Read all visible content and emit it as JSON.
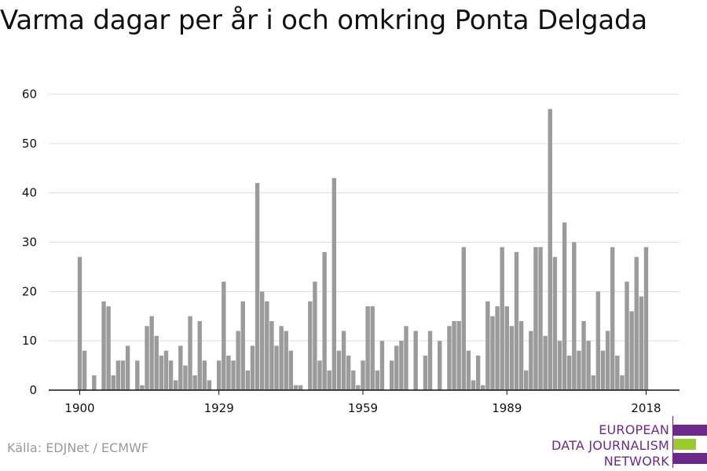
{
  "title": "Varma dagar per år i och omkring Ponta Delgada",
  "source": "Källa: EDJNet / ECMWF",
  "logo": {
    "line1": "EUROPEAN",
    "line2": "DATA JOURNALISM",
    "line3": "NETWORK"
  },
  "colors": {
    "bar": "#9b9b9b",
    "grid": "#dddddd",
    "axis": "#111111",
    "logo_purple": "#6b2a8b",
    "logo_green": "#9ccc2c"
  },
  "chart_data": {
    "type": "bar",
    "title": "Varma dagar per år i och omkring Ponta Delgada",
    "xlabel": "",
    "ylabel": "",
    "ylim": [
      0,
      60
    ],
    "yticks": [
      0,
      10,
      20,
      30,
      40,
      50,
      60
    ],
    "xticks": [
      1900,
      1929,
      1959,
      1989,
      2018
    ],
    "grid": true,
    "x": [
      1900,
      1901,
      1902,
      1903,
      1904,
      1905,
      1906,
      1907,
      1908,
      1909,
      1910,
      1911,
      1912,
      1913,
      1914,
      1915,
      1916,
      1917,
      1918,
      1919,
      1920,
      1921,
      1922,
      1923,
      1924,
      1925,
      1926,
      1927,
      1928,
      1929,
      1930,
      1931,
      1932,
      1933,
      1934,
      1935,
      1936,
      1937,
      1938,
      1939,
      1940,
      1941,
      1942,
      1943,
      1944,
      1945,
      1946,
      1947,
      1948,
      1949,
      1950,
      1951,
      1952,
      1953,
      1954,
      1955,
      1956,
      1957,
      1958,
      1959,
      1960,
      1961,
      1962,
      1963,
      1964,
      1965,
      1966,
      1967,
      1968,
      1969,
      1970,
      1971,
      1972,
      1973,
      1974,
      1975,
      1976,
      1977,
      1978,
      1979,
      1980,
      1981,
      1982,
      1983,
      1984,
      1985,
      1986,
      1987,
      1988,
      1989,
      1990,
      1991,
      1992,
      1993,
      1994,
      1995,
      1996,
      1997,
      1998,
      1999,
      2000,
      2001,
      2002,
      2003,
      2004,
      2005,
      2006,
      2007,
      2008,
      2009,
      2010,
      2011,
      2012,
      2013,
      2014,
      2015,
      2016,
      2017,
      2018
    ],
    "values": [
      27,
      8,
      0,
      3,
      0,
      18,
      17,
      3,
      6,
      6,
      9,
      0,
      6,
      1,
      13,
      15,
      11,
      7,
      8,
      6,
      2,
      9,
      5,
      15,
      3,
      14,
      6,
      2,
      0,
      6,
      22,
      7,
      6,
      12,
      18,
      4,
      9,
      42,
      20,
      18,
      14,
      9,
      13,
      12,
      8,
      1,
      1,
      0,
      18,
      22,
      6,
      28,
      4,
      43,
      8,
      12,
      7,
      4,
      1,
      6,
      17,
      17,
      4,
      10,
      0,
      6,
      9,
      10,
      13,
      0,
      12,
      0,
      7,
      12,
      0,
      10,
      0,
      13,
      14,
      14,
      29,
      8,
      2,
      7,
      1,
      18,
      15,
      17,
      29,
      17,
      13,
      28,
      14,
      4,
      12,
      29,
      29,
      11,
      57,
      27,
      10,
      34,
      7,
      30,
      8,
      14,
      10,
      3,
      20,
      8,
      12,
      29,
      7,
      3,
      22,
      16,
      27,
      19,
      29
    ]
  }
}
